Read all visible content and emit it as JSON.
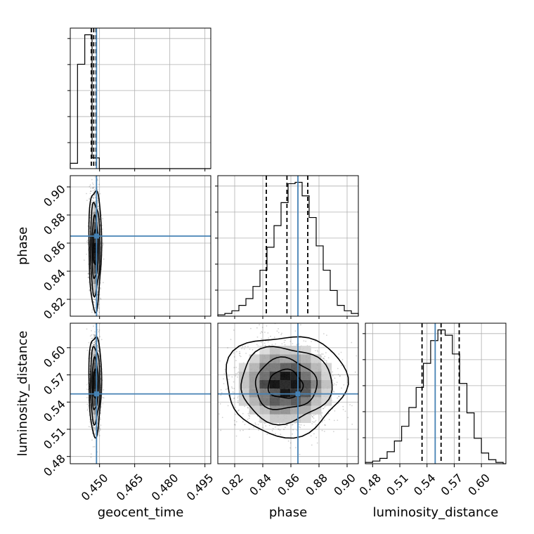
{
  "chart_data": {
    "type": "corner",
    "parameters": [
      "geocent_time",
      "phase",
      "luminosity_distance"
    ],
    "axis_labels": {
      "geocent_time": "geocent_time",
      "phase": "phase",
      "luminosity_distance": "luminosity_distance"
    },
    "truths": {
      "geocent_time": 0.4487,
      "phase": 0.865,
      "luminosity_distance": 0.549
    },
    "truth_color": "#4682b4",
    "hist_color": "#000000",
    "grid": true,
    "ranges": {
      "geocent_time": [
        0.4375,
        0.4975
      ],
      "phase": [
        0.808,
        0.908
      ],
      "luminosity_distance": [
        0.472,
        0.627
      ]
    },
    "ticks": {
      "geocent_time": {
        "values": [
          0.45,
          0.465,
          0.48,
          0.495
        ],
        "labels": [
          "0.450",
          "0.465",
          "0.480",
          "0.495"
        ]
      },
      "phase": {
        "values": [
          0.82,
          0.84,
          0.86,
          0.88,
          0.9
        ],
        "labels": [
          "0.82",
          "0.84",
          "0.86",
          "0.88",
          "0.90"
        ]
      },
      "luminosity_distance": {
        "values": [
          0.48,
          0.51,
          0.54,
          0.57,
          0.6
        ],
        "labels": [
          "0.48",
          "0.51",
          "0.54",
          "0.57",
          "0.60"
        ]
      }
    },
    "histograms": {
      "geocent_time": {
        "bin_edges": [
          0.4375,
          0.4406,
          0.4437,
          0.4468,
          0.4499,
          0.453,
          0.4561
        ],
        "counts": [
          0.04,
          0.78,
          1.0,
          0.08,
          0.0,
          0.0
        ],
        "quantiles": [
          0.4465,
          0.4475,
          0.4485
        ]
      },
      "phase": {
        "bin_edges": [
          0.808,
          0.813,
          0.818,
          0.823,
          0.828,
          0.833,
          0.838,
          0.843,
          0.848,
          0.853,
          0.858,
          0.863,
          0.868,
          0.873,
          0.878,
          0.883,
          0.888,
          0.893,
          0.898,
          0.903,
          0.908
        ],
        "counts": [
          0.01,
          0.02,
          0.04,
          0.08,
          0.13,
          0.22,
          0.34,
          0.51,
          0.67,
          0.84,
          0.98,
          0.99,
          0.89,
          0.73,
          0.52,
          0.34,
          0.19,
          0.08,
          0.04,
          0.02
        ],
        "quantiles": [
          0.8425,
          0.8572,
          0.872
        ]
      },
      "luminosity_distance": {
        "bin_edges": [
          0.472,
          0.48,
          0.488,
          0.496,
          0.504,
          0.512,
          0.52,
          0.528,
          0.536,
          0.544,
          0.552,
          0.56,
          0.568,
          0.576,
          0.584,
          0.592,
          0.6,
          0.608,
          0.616,
          0.624
        ],
        "counts": [
          0.01,
          0.02,
          0.04,
          0.09,
          0.17,
          0.28,
          0.42,
          0.57,
          0.75,
          0.92,
          1.0,
          0.96,
          0.82,
          0.6,
          0.38,
          0.19,
          0.08,
          0.03,
          0.01
        ],
        "quantiles": [
          0.5345,
          0.5555,
          0.5755
        ]
      }
    },
    "joint": [
      {
        "x": "geocent_time",
        "y": "phase",
        "center": [
          0.4481,
          0.8565
        ],
        "sigma": [
          0.0011,
          0.0175
        ]
      },
      {
        "x": "geocent_time",
        "y": "luminosity_distance",
        "center": [
          0.4481,
          0.5595
        ],
        "sigma": [
          0.0011,
          0.0225
        ]
      },
      {
        "x": "phase",
        "y": "luminosity_distance",
        "center": [
          0.856,
          0.5595
        ],
        "sigma": [
          0.0175,
          0.0225
        ]
      }
    ]
  }
}
